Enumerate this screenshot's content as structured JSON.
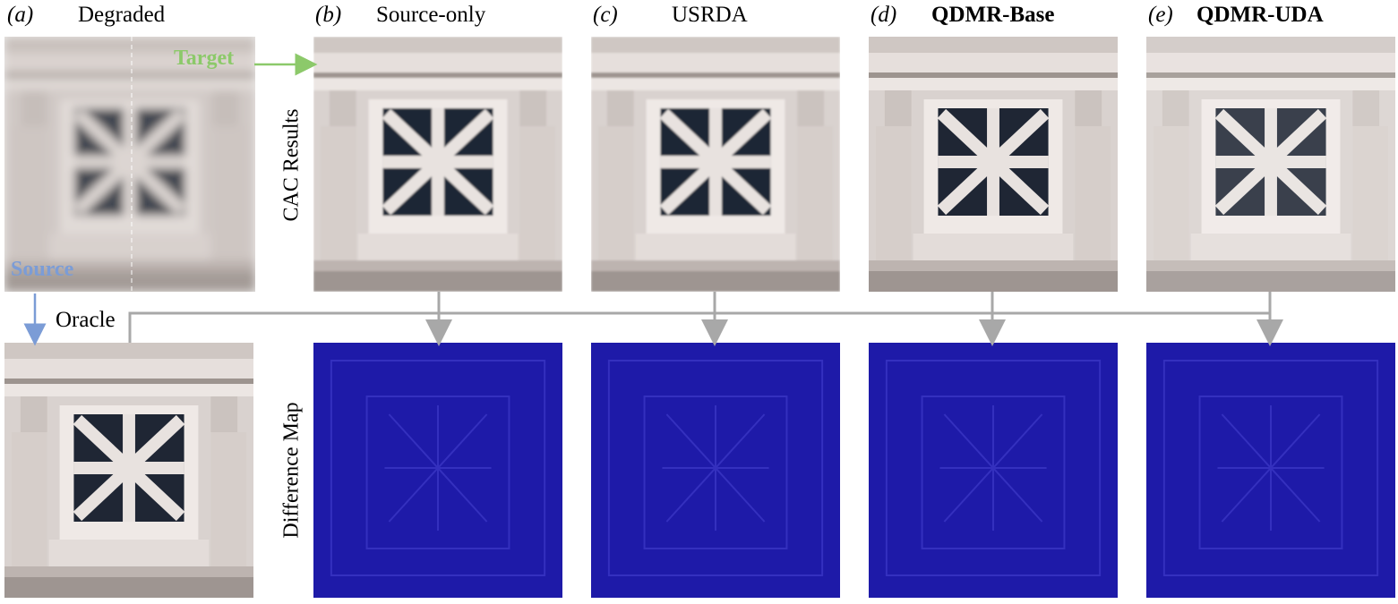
{
  "columns": [
    {
      "letter": "(a)",
      "title": "Degraded",
      "bold": false
    },
    {
      "letter": "(b)",
      "title": "Source-only",
      "bold": false
    },
    {
      "letter": "(c)",
      "title": "USRDA",
      "bold": false
    },
    {
      "letter": "(d)",
      "title": "QDMR-Base",
      "bold": true
    },
    {
      "letter": "(e)",
      "title": "QDMR-UDA",
      "bold": true
    }
  ],
  "row_labels": {
    "top": "CAC Results",
    "bottom": "Difference Map"
  },
  "tags": {
    "target": "Target",
    "source": "Source",
    "oracle": "Oracle"
  },
  "colors": {
    "target": "#8cc96a",
    "source": "#7b9cd6",
    "connector": "#a8a8a8",
    "diffmap": "#1e1aa8"
  }
}
